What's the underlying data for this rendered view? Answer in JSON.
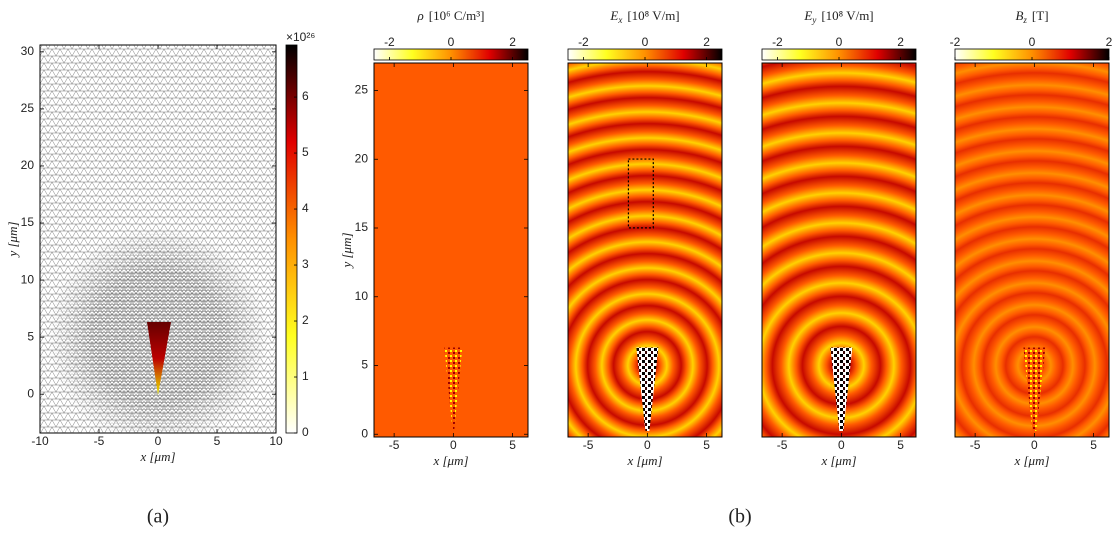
{
  "colormap": [
    "#ffffff",
    "#ffff20",
    "#ff9000",
    "#e00000",
    "#000000"
  ],
  "figure_labels": [
    "(a)",
    "(b)"
  ],
  "chart_data": [
    {
      "type": "mesh",
      "xlabel": "x [μm]",
      "ylabel": "y [μm]",
      "xlim": [
        -10,
        10
      ],
      "xticks": [
        -10,
        -5,
        0,
        5,
        10
      ],
      "ylim": [
        -3.4,
        30.6
      ],
      "yticks": [
        0,
        5,
        10,
        15,
        20,
        25,
        30
      ],
      "colorbar": {
        "lim": [
          0,
          6.93
        ],
        "ticks": [
          0,
          1,
          2,
          3,
          4,
          5,
          6
        ],
        "multiplier": "×10²⁶"
      }
    },
    {
      "type": "field",
      "title": {
        "symbol": "ρ",
        "sub": "",
        "unit": "[10⁶ C/m³]"
      },
      "xlabel": "x [μm]",
      "ylabel": "y [μm]",
      "xlim": [
        -6.7,
        6.3
      ],
      "xticks": [
        -5,
        0,
        5
      ],
      "ylim": [
        -0.2,
        27
      ],
      "yticks": [
        0,
        5,
        10,
        15,
        20,
        25
      ],
      "colorbar": {
        "lim": [
          -2.5,
          2.5
        ],
        "ticks": [
          -2,
          0,
          2
        ]
      }
    },
    {
      "type": "field",
      "title": {
        "symbol": "E",
        "sub": "x",
        "unit": "[10⁸ V/m]"
      },
      "xlabel": "x [μm]",
      "xlim": [
        -6.7,
        6.3
      ],
      "xticks": [
        -5,
        0,
        5
      ],
      "colorbar": {
        "lim": [
          -2.5,
          2.5
        ],
        "ticks": [
          -2,
          0,
          2
        ]
      }
    },
    {
      "type": "field",
      "title": {
        "symbol": "E",
        "sub": "y",
        "unit": "[10⁸ V/m]"
      },
      "xlabel": "x [μm]",
      "xlim": [
        -6.7,
        6.3
      ],
      "xticks": [
        -5,
        0,
        5
      ],
      "colorbar": {
        "lim": [
          -2.5,
          2.5
        ],
        "ticks": [
          -2,
          0,
          2
        ]
      }
    },
    {
      "type": "field",
      "title": {
        "symbol": "B",
        "sub": "z",
        "unit": "[T]"
      },
      "xlabel": "x [μm]",
      "xlim": [
        -6.7,
        6.3
      ],
      "xticks": [
        -5,
        0,
        5
      ],
      "colorbar": {
        "lim": [
          -2,
          2
        ],
        "ticks": [
          -2,
          0,
          2
        ]
      }
    }
  ]
}
